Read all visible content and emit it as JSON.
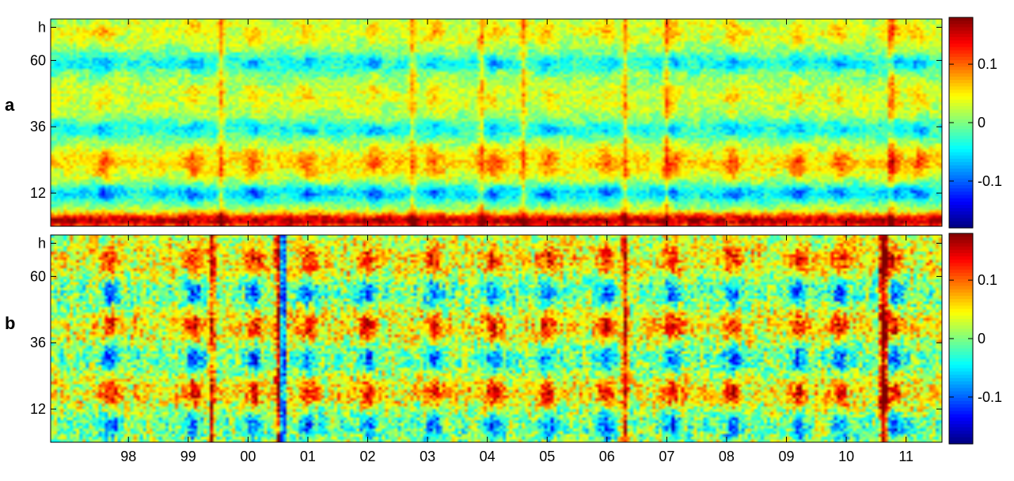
{
  "chart_data": [
    {
      "type": "heatmap",
      "panel_label": "a",
      "title": "",
      "xlabel": "",
      "ylabel": "",
      "y_ticks": [
        "12",
        "36",
        "60",
        "h"
      ],
      "y_tick_values": [
        12,
        36,
        60,
        72
      ],
      "ylim": [
        0,
        75
      ],
      "x_ticks": [
        "98",
        "99",
        "00",
        "01",
        "02",
        "03",
        "04",
        "05",
        "06",
        "07",
        "08",
        "09",
        "10",
        "11"
      ],
      "x_tick_positions": [
        1998,
        1999,
        2000,
        2001,
        2002,
        2003,
        2004,
        2005,
        2006,
        2007,
        2008,
        2009,
        2010,
        2011
      ],
      "xlim": [
        1996.7,
        2011.6
      ],
      "colorbar": {
        "ticks": [
          "0.1",
          "0",
          "-0.1"
        ],
        "tick_values": [
          0.1,
          0,
          -0.1
        ],
        "range": [
          -0.18,
          0.18
        ],
        "colormap": "jet"
      },
      "features": {
        "row_bias": [
          {
            "hours": [
              0,
              4
            ],
            "level": 0.16
          },
          {
            "hours": [
              10,
              14
            ],
            "level": -0.07
          },
          {
            "hours": [
              18,
              28
            ],
            "level": 0.07
          },
          {
            "hours": [
              33,
              37
            ],
            "level": -0.05
          },
          {
            "hours": [
              41,
              52
            ],
            "level": 0.035
          },
          {
            "hours": [
              57,
              61
            ],
            "level": -0.05
          },
          {
            "hours": [
              66,
              75
            ],
            "level": 0.045
          }
        ],
        "strong_years": [
          2003.1,
          2004.1,
          2009.2,
          2009.9,
          2001.0,
          2002.1,
          2005.0,
          2006.0,
          2007.1,
          2008.1,
          1999.1,
          2000.1,
          1997.6,
          2010.8,
          2011.2
        ],
        "vertical_streaks": [
          1999.55,
          2002.75,
          2003.9,
          2004.6,
          2006.3,
          2007.0,
          2010.75
        ]
      }
    },
    {
      "type": "heatmap",
      "panel_label": "b",
      "title": "",
      "xlabel": "",
      "ylabel": "",
      "y_ticks": [
        "12",
        "36",
        "60",
        "h"
      ],
      "y_tick_values": [
        12,
        36,
        60,
        72
      ],
      "ylim": [
        0,
        75
      ],
      "x_ticks": [
        "98",
        "99",
        "00",
        "01",
        "02",
        "03",
        "04",
        "05",
        "06",
        "07",
        "08",
        "09",
        "10",
        "11"
      ],
      "x_tick_positions": [
        1998,
        1999,
        2000,
        2001,
        2002,
        2003,
        2004,
        2005,
        2006,
        2007,
        2008,
        2009,
        2010,
        2011
      ],
      "xlim": [
        1996.7,
        2011.6
      ],
      "colorbar": {
        "ticks": [
          "0.1",
          "0",
          "-0.1"
        ],
        "tick_values": [
          0.1,
          0,
          -0.1
        ],
        "range": [
          -0.18,
          0.18
        ],
        "colormap": "jet"
      },
      "features": {
        "red_hours": [
          18,
          42,
          66
        ],
        "blue_hours": [
          6,
          30,
          54
        ],
        "strong_years": [
          2003.1,
          2004.1,
          2005.0,
          2006.0,
          2009.2,
          2009.9,
          2001.0,
          2002.0,
          1997.7,
          2007.1,
          2008.1,
          1999.1,
          2000.1,
          2010.8
        ],
        "vertical_streaks": [
          2000.5,
          2000.6,
          2010.6,
          2010.65,
          1999.4,
          2006.3
        ]
      }
    }
  ]
}
